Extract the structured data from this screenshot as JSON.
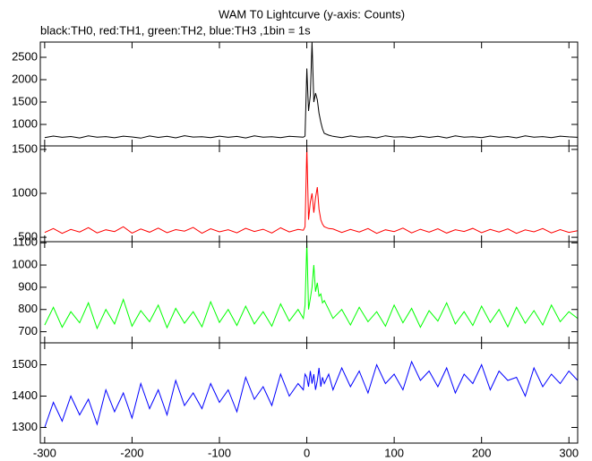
{
  "title": "WAM T0 Lightcurve (y-axis: Counts)",
  "subtitle": "black:TH0, red:TH1, green:TH2, blue:TH3 ,1bin = 1s",
  "chart_data": [
    {
      "type": "line",
      "color": "#000000",
      "ylim": [
        520,
        2840
      ],
      "yticks": [
        1000,
        1500,
        2000,
        2500
      ],
      "x": [
        -300,
        -290,
        -280,
        -270,
        -260,
        -250,
        -240,
        -230,
        -220,
        -210,
        -200,
        -190,
        -180,
        -170,
        -160,
        -150,
        -140,
        -130,
        -120,
        -110,
        -100,
        -90,
        -80,
        -70,
        -60,
        -50,
        -40,
        -30,
        -20,
        -10,
        -4,
        -2,
        0,
        2,
        4,
        6,
        8,
        10,
        12,
        14,
        16,
        18,
        20,
        25,
        30,
        40,
        50,
        60,
        70,
        80,
        90,
        100,
        110,
        120,
        130,
        140,
        150,
        160,
        170,
        180,
        190,
        200,
        210,
        220,
        230,
        240,
        250,
        260,
        270,
        280,
        290,
        300,
        310
      ],
      "values": [
        705,
        740,
        712,
        730,
        698,
        745,
        715,
        728,
        702,
        738,
        720,
        695,
        742,
        710,
        733,
        700,
        748,
        718,
        725,
        703,
        739,
        711,
        731,
        699,
        744,
        716,
        727,
        706,
        737,
        722,
        715,
        740,
        2250,
        1300,
        1650,
        2840,
        1500,
        1700,
        1550,
        1250,
        1050,
        900,
        800,
        760,
        735,
        705,
        742,
        714,
        729,
        700,
        746,
        719,
        724,
        702,
        738,
        710,
        733,
        698,
        744,
        717,
        726,
        704,
        740,
        712,
        730,
        700,
        745,
        716,
        728,
        706,
        739,
        721,
        712
      ]
    },
    {
      "type": "line",
      "color": "#ff0000",
      "ylim": [
        450,
        1540
      ],
      "yticks": [
        500,
        1000,
        1500
      ],
      "x": [
        -300,
        -290,
        -280,
        -270,
        -260,
        -250,
        -240,
        -230,
        -220,
        -210,
        -200,
        -190,
        -180,
        -170,
        -160,
        -150,
        -140,
        -130,
        -120,
        -110,
        -100,
        -90,
        -80,
        -70,
        -60,
        -50,
        -40,
        -30,
        -20,
        -10,
        -4,
        -2,
        0,
        2,
        4,
        6,
        8,
        10,
        12,
        14,
        16,
        18,
        20,
        25,
        30,
        40,
        50,
        60,
        70,
        80,
        90,
        100,
        110,
        120,
        130,
        140,
        150,
        160,
        170,
        180,
        190,
        200,
        210,
        220,
        230,
        240,
        250,
        260,
        270,
        280,
        290,
        300,
        310
      ],
      "values": [
        555,
        600,
        545,
        590,
        560,
        610,
        550,
        585,
        565,
        620,
        548,
        595,
        558,
        605,
        552,
        588,
        570,
        612,
        546,
        598,
        562,
        586,
        551,
        603,
        566,
        592,
        549,
        608,
        561,
        590,
        580,
        620,
        1520,
        700,
        900,
        1000,
        780,
        950,
        1070,
        820,
        700,
        650,
        620,
        600,
        595,
        555,
        590,
        560,
        600,
        545,
        585,
        565,
        605,
        550,
        592,
        558,
        598,
        548,
        587,
        566,
        602,
        552,
        590,
        560,
        596,
        545,
        584,
        562,
        600,
        550,
        588,
        556,
        575
      ]
    },
    {
      "type": "line",
      "color": "#00ff00",
      "ylim": [
        650,
        1105
      ],
      "yticks": [
        700,
        800,
        900,
        1000,
        1100
      ],
      "x": [
        -300,
        -290,
        -280,
        -270,
        -260,
        -250,
        -240,
        -230,
        -220,
        -210,
        -200,
        -190,
        -180,
        -170,
        -160,
        -150,
        -140,
        -130,
        -120,
        -110,
        -100,
        -90,
        -80,
        -70,
        -60,
        -50,
        -40,
        -30,
        -20,
        -10,
        -4,
        -2,
        0,
        2,
        4,
        6,
        8,
        10,
        12,
        14,
        16,
        18,
        20,
        25,
        30,
        40,
        50,
        60,
        70,
        80,
        90,
        100,
        110,
        120,
        130,
        140,
        150,
        160,
        170,
        180,
        190,
        200,
        210,
        220,
        230,
        240,
        250,
        260,
        270,
        280,
        290,
        300,
        310
      ],
      "values": [
        730,
        810,
        720,
        790,
        740,
        830,
        715,
        800,
        735,
        845,
        725,
        795,
        745,
        820,
        718,
        805,
        738,
        790,
        722,
        835,
        742,
        800,
        728,
        815,
        735,
        790,
        725,
        825,
        748,
        800,
        760,
        820,
        1100,
        800,
        850,
        900,
        1000,
        880,
        920,
        860,
        870,
        830,
        840,
        800,
        760,
        800,
        730,
        810,
        745,
        790,
        725,
        820,
        740,
        805,
        720,
        795,
        748,
        830,
        735,
        790,
        728,
        815,
        742,
        800,
        722,
        810,
        738,
        795,
        730,
        820,
        745,
        790,
        760
      ]
    },
    {
      "type": "line",
      "color": "#0000ff",
      "ylim": [
        1250,
        1570
      ],
      "yticks": [
        1300,
        1400,
        1500
      ],
      "xlim": [
        -305,
        310
      ],
      "xticks": [
        -300,
        -200,
        -100,
        0,
        100,
        200,
        300
      ],
      "x": [
        -300,
        -290,
        -280,
        -270,
        -260,
        -250,
        -240,
        -230,
        -220,
        -210,
        -200,
        -190,
        -180,
        -170,
        -160,
        -150,
        -140,
        -130,
        -120,
        -110,
        -100,
        -90,
        -80,
        -70,
        -60,
        -50,
        -40,
        -30,
        -20,
        -10,
        -4,
        -2,
        0,
        2,
        4,
        6,
        8,
        10,
        12,
        14,
        16,
        18,
        20,
        25,
        30,
        40,
        50,
        60,
        70,
        80,
        90,
        100,
        110,
        120,
        130,
        140,
        150,
        160,
        170,
        180,
        190,
        200,
        210,
        220,
        230,
        240,
        250,
        260,
        270,
        280,
        290,
        300,
        310
      ],
      "values": [
        1300,
        1380,
        1320,
        1400,
        1340,
        1390,
        1310,
        1420,
        1350,
        1410,
        1330,
        1440,
        1360,
        1420,
        1340,
        1450,
        1370,
        1410,
        1360,
        1440,
        1380,
        1420,
        1350,
        1460,
        1390,
        1430,
        1370,
        1470,
        1400,
        1440,
        1420,
        1470,
        1460,
        1430,
        1480,
        1440,
        1470,
        1420,
        1450,
        1490,
        1430,
        1460,
        1440,
        1470,
        1420,
        1490,
        1430,
        1480,
        1410,
        1500,
        1440,
        1470,
        1420,
        1510,
        1450,
        1480,
        1430,
        1490,
        1410,
        1470,
        1440,
        1500,
        1420,
        1480,
        1450,
        1460,
        1400,
        1490,
        1430,
        1470,
        1440,
        1480,
        1450
      ]
    }
  ]
}
